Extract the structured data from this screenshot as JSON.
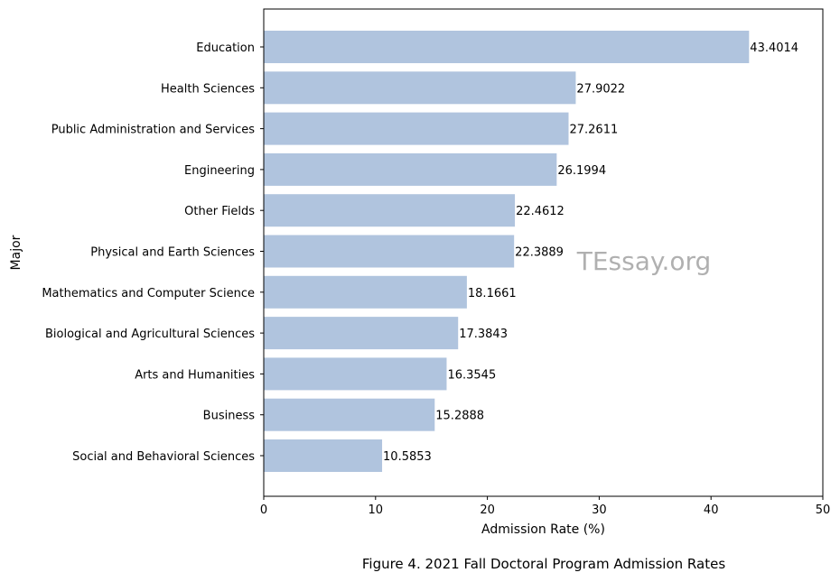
{
  "chart_data": {
    "type": "bar",
    "orientation": "horizontal",
    "categories": [
      "Education",
      "Health Sciences",
      "Public Administration and Services",
      "Engineering",
      "Other Fields",
      "Physical and Earth Sciences",
      "Mathematics and Computer Science",
      "Biological and Agricultural Sciences",
      "Arts and Humanities",
      "Business",
      "Social and Behavioral Sciences"
    ],
    "values": [
      43.4014,
      27.9022,
      27.2611,
      26.1994,
      22.4612,
      22.3889,
      18.1661,
      17.3843,
      16.3545,
      15.2888,
      10.5853
    ],
    "data_labels": [
      "43.4014",
      "27.9022",
      "27.2611",
      "26.1994",
      "22.4612",
      "22.3889",
      "18.1661",
      "17.3843",
      "16.3545",
      "15.2888",
      "10.5853"
    ],
    "xlabel": "Admission Rate (%)",
    "ylabel": "Major",
    "xlim": [
      0,
      50
    ],
    "xticks": [
      0,
      10,
      20,
      30,
      40,
      50
    ],
    "grid": false,
    "bar_color": "#b0c4de",
    "watermark": "TEssay.org",
    "caption": "Figure 4. 2021 Fall Doctoral Program Admission Rates"
  }
}
